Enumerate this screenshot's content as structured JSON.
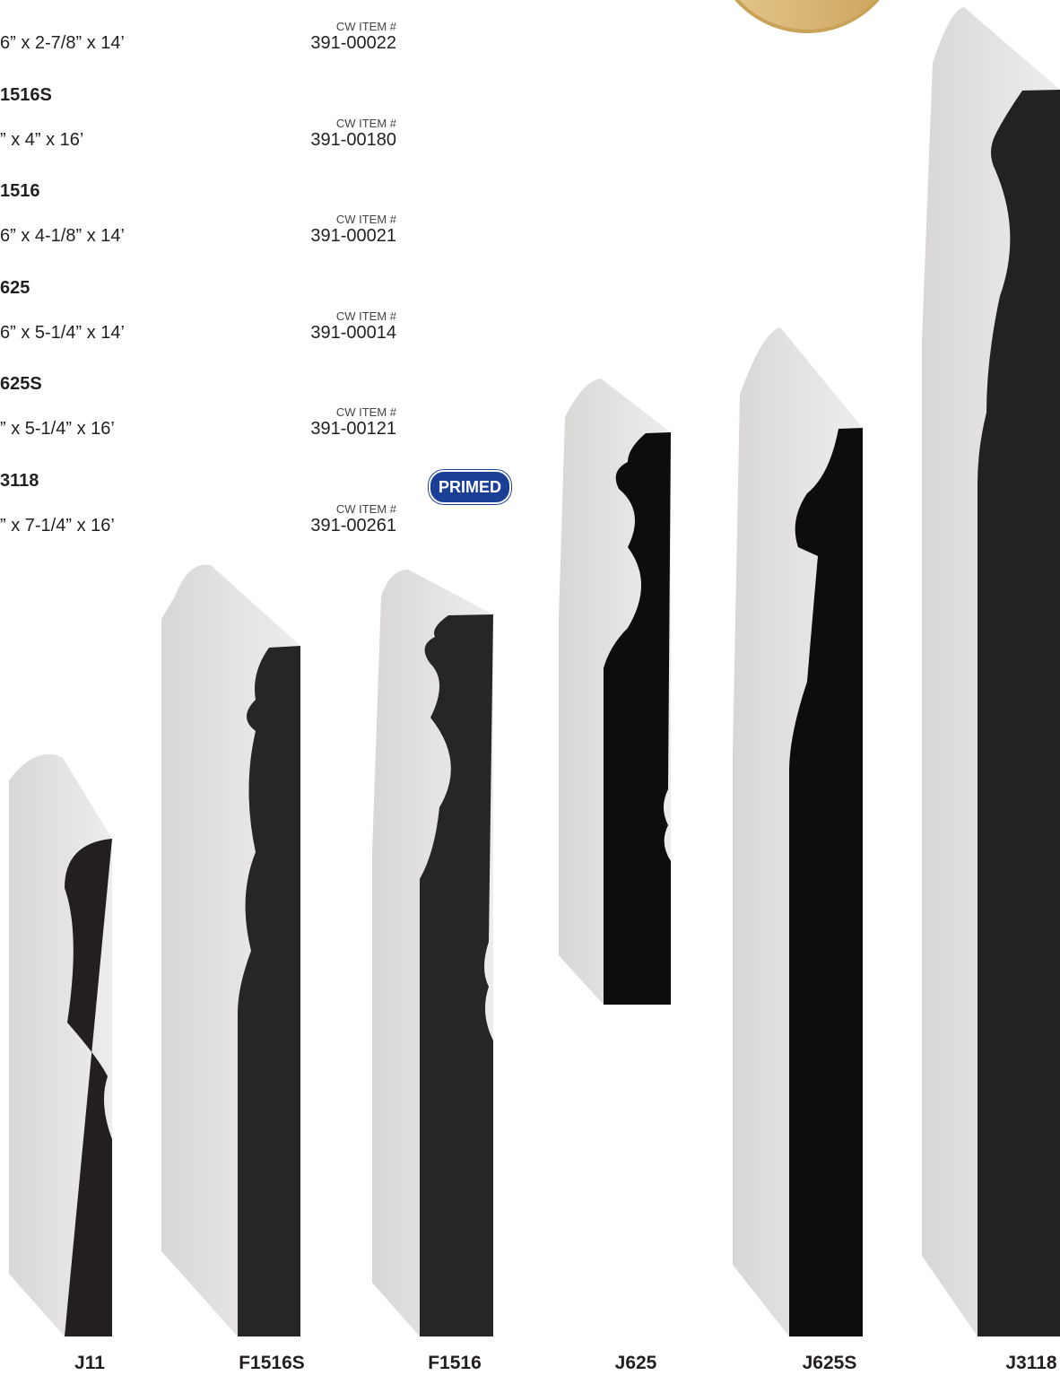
{
  "items": [
    {
      "dims": "6” x 2-7/8” x 14’",
      "cw_label": "CW ITEM #",
      "item_no": "391-00022"
    },
    {
      "name": "1516S",
      "dims": "” x 4” x 16’",
      "cw_label": "CW ITEM #",
      "item_no": "391-00180"
    },
    {
      "name": "1516",
      "dims": "6” x 4-1/8” x 14’",
      "cw_label": "CW ITEM #",
      "item_no": "391-00021"
    },
    {
      "name": "625",
      "dims": "6” x 5-1/4” x 14’",
      "cw_label": "CW ITEM #",
      "item_no": "391-00014"
    },
    {
      "name": "625S",
      "dims": "” x 5-1/4” x 16’",
      "cw_label": "CW ITEM #",
      "item_no": "391-00121"
    },
    {
      "name": "3118",
      "dims": "” x 7-1/4” x 16’",
      "cw_label": "CW ITEM #",
      "item_no": "391-00261"
    }
  ],
  "badge": "PRIMED",
  "profiles": [
    "J11",
    "F1516S",
    "F1516",
    "J625",
    "J625S",
    "J3118"
  ]
}
